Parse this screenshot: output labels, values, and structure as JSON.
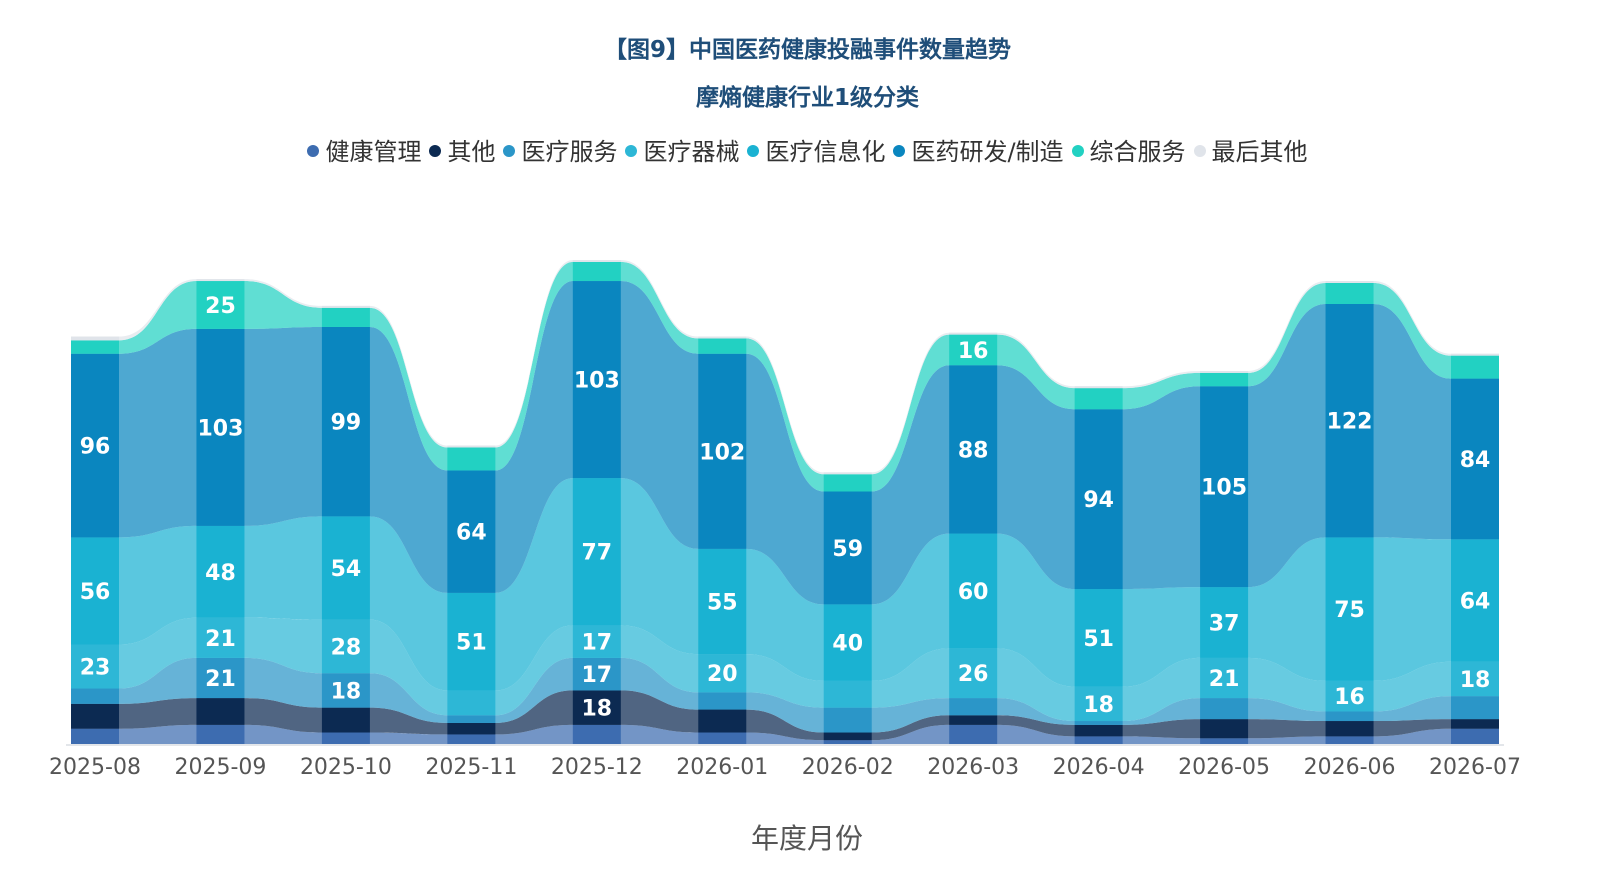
{
  "chart_data": {
    "type": "area",
    "title": "【图9】中国医药健康投融事件数量趋势",
    "subtitle": "摩熵健康行业1级分类",
    "xlabel": "年度月份",
    "ylabel": "",
    "legend_position": "top",
    "categories": [
      "2025-08",
      "2025-09",
      "2025-10",
      "2025-11",
      "2025-12",
      "2026-01",
      "2026-02",
      "2026-03",
      "2026-04",
      "2026-05",
      "2026-06",
      "2026-07"
    ],
    "series": [
      {
        "name": "健康管理",
        "color": "#3d6cb0",
        "values": [
          8,
          10,
          6,
          5,
          10,
          6,
          2,
          10,
          4,
          3,
          4,
          8
        ]
      },
      {
        "name": "其他",
        "color": "#0c2a52",
        "values": [
          13,
          14,
          13,
          6,
          18,
          12,
          4,
          5,
          6,
          10,
          8,
          5
        ]
      },
      {
        "name": "医疗服务",
        "color": "#2b96c8",
        "values": [
          8,
          21,
          18,
          4,
          17,
          9,
          13,
          9,
          2,
          11,
          5,
          12
        ]
      },
      {
        "name": "医疗器械",
        "color": "#2db7d6",
        "values": [
          23,
          21,
          28,
          13,
          17,
          20,
          14,
          26,
          18,
          21,
          16,
          18
        ]
      },
      {
        "name": "医疗信息化",
        "color": "#1ab2d2",
        "values": [
          56,
          48,
          54,
          51,
          77,
          55,
          40,
          60,
          51,
          37,
          75,
          64
        ]
      },
      {
        "name": "医药研发/制造",
        "color": "#0a86bf",
        "values": [
          96,
          103,
          99,
          64,
          103,
          102,
          59,
          88,
          94,
          105,
          122,
          84
        ]
      },
      {
        "name": "综合服务",
        "color": "#22d1c2",
        "values": [
          7,
          25,
          10,
          12,
          10,
          8,
          9,
          16,
          11,
          7,
          11,
          12
        ]
      },
      {
        "name": "最后其他",
        "color": "#e0e4ea",
        "values": [
          2,
          1,
          1,
          1,
          1,
          1,
          1,
          1,
          1,
          1,
          1,
          1
        ]
      }
    ],
    "data_labels": [
      {
        "series": "医药研发/制造",
        "category": "2025-08",
        "value": "96"
      },
      {
        "series": "医药研发/制造",
        "category": "2025-09",
        "value": "103"
      },
      {
        "series": "医药研发/制造",
        "category": "2025-10",
        "value": "99"
      },
      {
        "series": "医药研发/制造",
        "category": "2025-11",
        "value": "64"
      },
      {
        "series": "医药研发/制造",
        "category": "2025-12",
        "value": "103"
      },
      {
        "series": "医药研发/制造",
        "category": "2026-01",
        "value": "102"
      },
      {
        "series": "医药研发/制造",
        "category": "2026-02",
        "value": "59"
      },
      {
        "series": "医药研发/制造",
        "category": "2026-03",
        "value": "88"
      },
      {
        "series": "医药研发/制造",
        "category": "2026-04",
        "value": "94"
      },
      {
        "series": "医药研发/制造",
        "category": "2026-05",
        "value": "105"
      },
      {
        "series": "医药研发/制造",
        "category": "2026-06",
        "value": "122"
      },
      {
        "series": "医药研发/制造",
        "category": "2026-07",
        "value": "84"
      },
      {
        "series": "医疗信息化",
        "category": "2025-08",
        "value": "56"
      },
      {
        "series": "医疗信息化",
        "category": "2025-09",
        "value": "48"
      },
      {
        "series": "医疗信息化",
        "category": "2025-10",
        "value": "54"
      },
      {
        "series": "医疗信息化",
        "category": "2025-11",
        "value": "51"
      },
      {
        "series": "医疗信息化",
        "category": "2025-12",
        "value": "77"
      },
      {
        "series": "医疗信息化",
        "category": "2026-01",
        "value": "55"
      },
      {
        "series": "医疗信息化",
        "category": "2026-02",
        "value": "40"
      },
      {
        "series": "医疗信息化",
        "category": "2026-03",
        "value": "60"
      },
      {
        "series": "医疗信息化",
        "category": "2026-04",
        "value": "51"
      },
      {
        "series": "医疗信息化",
        "category": "2026-05",
        "value": "37"
      },
      {
        "series": "医疗信息化",
        "category": "2026-06",
        "value": "75"
      },
      {
        "series": "医疗信息化",
        "category": "2026-07",
        "value": "64"
      },
      {
        "series": "医疗器械",
        "category": "2025-08",
        "value": "23"
      },
      {
        "series": "医疗器械",
        "category": "2025-09",
        "value": "21"
      },
      {
        "series": "医疗器械",
        "category": "2025-10",
        "value": "28"
      },
      {
        "series": "医疗器械",
        "category": "2025-12",
        "value": "17"
      },
      {
        "series": "医疗器械",
        "category": "2026-01",
        "value": "20"
      },
      {
        "series": "医疗器械",
        "category": "2026-03",
        "value": "26"
      },
      {
        "series": "医疗器械",
        "category": "2026-04",
        "value": "18"
      },
      {
        "series": "医疗器械",
        "category": "2026-05",
        "value": "21"
      },
      {
        "series": "医疗器械",
        "category": "2026-06",
        "value": "16"
      },
      {
        "series": "医疗器械",
        "category": "2026-07",
        "value": "18"
      },
      {
        "series": "综合服务",
        "category": "2025-09",
        "value": "25"
      },
      {
        "series": "综合服务",
        "category": "2026-03",
        "value": "16"
      },
      {
        "series": "医疗服务",
        "category": "2025-09",
        "value": "21"
      },
      {
        "series": "医疗服务",
        "category": "2025-10",
        "value": "18"
      },
      {
        "series": "医疗服务",
        "category": "2025-12",
        "value": "17"
      },
      {
        "series": "其他",
        "category": "2025-12",
        "value": "18"
      }
    ]
  }
}
